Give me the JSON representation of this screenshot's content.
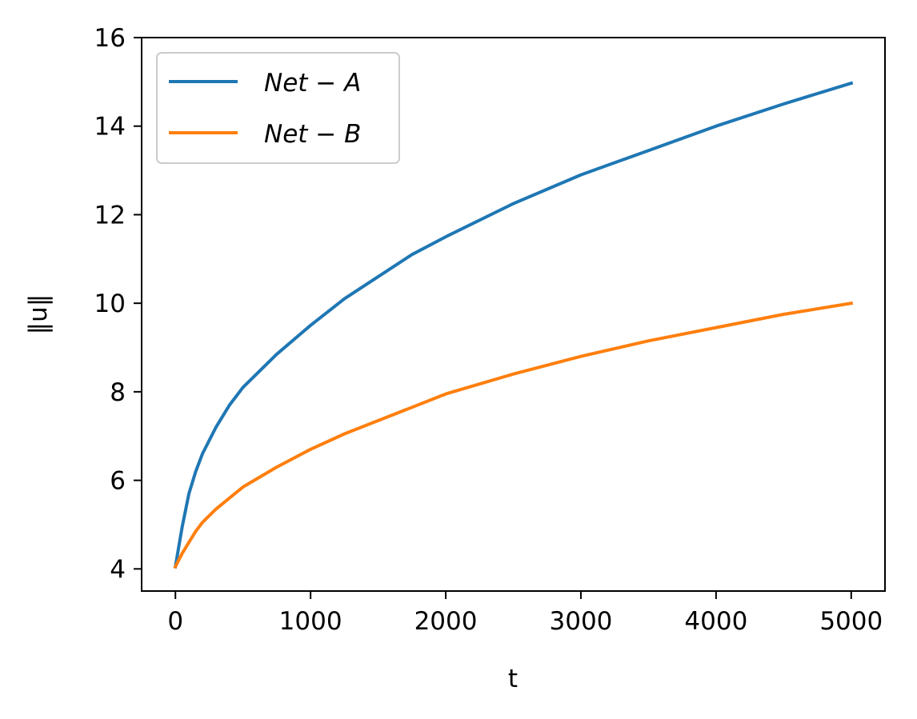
{
  "chart_data": {
    "type": "line",
    "title": "",
    "xlabel": "t",
    "ylabel": "‖u‖",
    "xlim": [
      -250,
      5250
    ],
    "ylim": [
      3.5,
      16
    ],
    "x_ticks": [
      0,
      1000,
      2000,
      3000,
      4000,
      5000
    ],
    "x_tick_labels": [
      "0",
      "1000",
      "2000",
      "3000",
      "4000",
      "5000"
    ],
    "y_ticks": [
      4,
      6,
      8,
      10,
      12,
      14,
      16
    ],
    "y_tick_labels": [
      "4",
      "6",
      "8",
      "10",
      "12",
      "14",
      "16"
    ],
    "grid": false,
    "legend_position": "top-left",
    "x": [
      0,
      25,
      50,
      100,
      150,
      200,
      300,
      400,
      500,
      750,
      1000,
      1250,
      1500,
      1750,
      2000,
      2500,
      3000,
      3500,
      4000,
      4500,
      5000
    ],
    "series": [
      {
        "name": "Net − A",
        "color": "#1f77b4",
        "values": [
          4.05,
          4.5,
          4.95,
          5.7,
          6.2,
          6.6,
          7.2,
          7.7,
          8.1,
          8.85,
          9.5,
          10.1,
          10.6,
          11.1,
          11.5,
          12.25,
          12.9,
          13.45,
          14.0,
          14.5,
          14.97
        ]
      },
      {
        "name": "Net − B",
        "color": "#ff7f0e",
        "values": [
          4.05,
          4.2,
          4.35,
          4.6,
          4.85,
          5.05,
          5.35,
          5.6,
          5.85,
          6.3,
          6.7,
          7.05,
          7.35,
          7.65,
          7.95,
          8.4,
          8.8,
          9.15,
          9.45,
          9.75,
          10.0
        ]
      }
    ]
  }
}
